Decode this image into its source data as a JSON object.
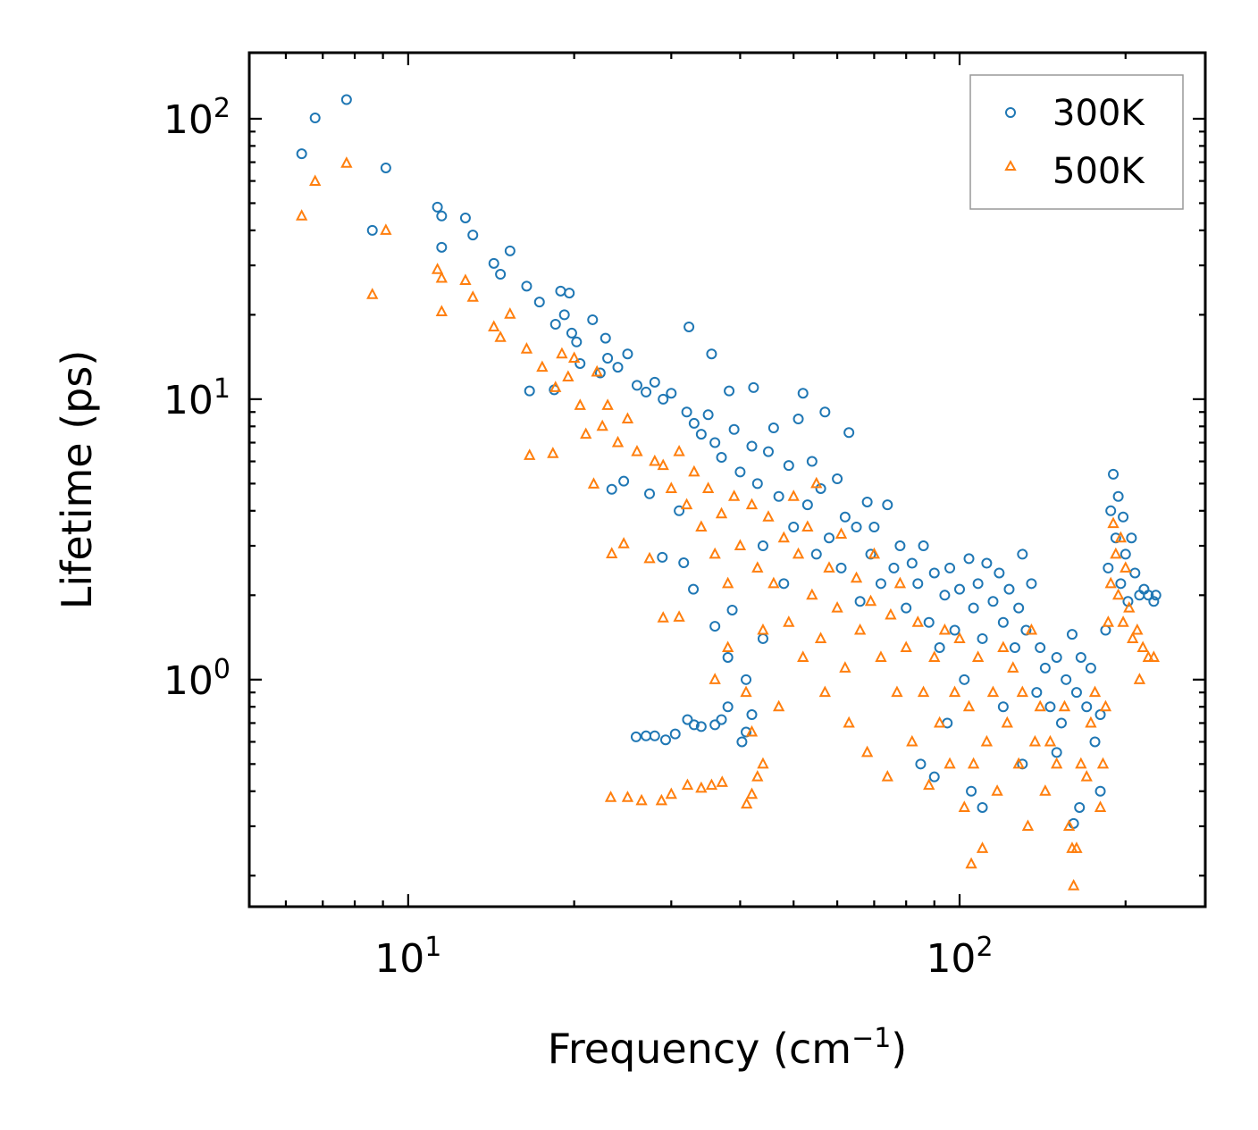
{
  "chart_data": {
    "type": "scatter",
    "title": "",
    "xlabel": "Frequency (cm",
    "xlabel_sup": "−1",
    "xlabel_end": ")",
    "ylabel": "Lifetime (ps)",
    "xscale": "log",
    "yscale": "log",
    "xlim": [
      5.15,
      279
    ],
    "ylim": [
      0.155,
      172
    ],
    "grid": false,
    "legend_position": "top-right",
    "x_ticks": [
      {
        "value": 10,
        "base": "10",
        "exp": "1"
      },
      {
        "value": 100,
        "base": "10",
        "exp": "2"
      }
    ],
    "y_ticks": [
      {
        "value": 1,
        "base": "10",
        "exp": "0"
      },
      {
        "value": 10,
        "base": "10",
        "exp": "1"
      },
      {
        "value": 100,
        "base": "10",
        "exp": "2"
      }
    ],
    "series": [
      {
        "name": "300K",
        "marker": "circle",
        "color": "#1f77b4",
        "points": [
          [
            6.41,
            75
          ],
          [
            6.78,
            100.7
          ],
          [
            7.73,
            117
          ],
          [
            8.61,
            40
          ],
          [
            9.11,
            66.8
          ],
          [
            11.3,
            48.4
          ],
          [
            11.5,
            45
          ],
          [
            11.5,
            34.8
          ],
          [
            12.7,
            44.3
          ],
          [
            13.1,
            38.5
          ],
          [
            14.3,
            30.5
          ],
          [
            14.7,
            27.9
          ],
          [
            15.3,
            33.8
          ],
          [
            16.4,
            25.3
          ],
          [
            16.6,
            10.7
          ],
          [
            17.3,
            22.2
          ],
          [
            18.4,
            10.8
          ],
          [
            18.9,
            24.3
          ],
          [
            19.6,
            23.9
          ],
          [
            18.5,
            18.5
          ],
          [
            19.2,
            20
          ],
          [
            19.8,
            17.2
          ],
          [
            20.5,
            13.4
          ],
          [
            20.2,
            16
          ],
          [
            21.6,
            19.2
          ],
          [
            22.3,
            12.4
          ],
          [
            22.8,
            16.5
          ],
          [
            23,
            14
          ],
          [
            23.4,
            4.77
          ],
          [
            24,
            13
          ],
          [
            24.6,
            5.1
          ],
          [
            25,
            14.5
          ],
          [
            26,
            11.2
          ],
          [
            27,
            10.6
          ],
          [
            27.4,
            4.6
          ],
          [
            28,
            11.5
          ],
          [
            28.9,
            2.73
          ],
          [
            29,
            10
          ],
          [
            30,
            10.5
          ],
          [
            31,
            4.0
          ],
          [
            31.6,
            2.61
          ],
          [
            32.3,
            18.1
          ],
          [
            32.9,
            2.1
          ],
          [
            32,
            9
          ],
          [
            33,
            8.2
          ],
          [
            34,
            7.5
          ],
          [
            35.5,
            14.5
          ],
          [
            35,
            8.8
          ],
          [
            36,
            7
          ],
          [
            36,
            1.55
          ],
          [
            37,
            6.2
          ],
          [
            38.2,
            10.7
          ],
          [
            38.7,
            1.77
          ],
          [
            38,
            1.2
          ],
          [
            39,
            7.8
          ],
          [
            40,
            5.5
          ],
          [
            41,
            1.0
          ],
          [
            42.3,
            11
          ],
          [
            42,
            6.8
          ],
          [
            43,
            5
          ],
          [
            44,
            1.4
          ],
          [
            44,
            3
          ],
          [
            45,
            6.5
          ],
          [
            46,
            7.9
          ],
          [
            47,
            4.5
          ],
          [
            48,
            2.2
          ],
          [
            49,
            5.8
          ],
          [
            50,
            3.5
          ],
          [
            51,
            8.5
          ],
          [
            52,
            10.5
          ],
          [
            53,
            4.2
          ],
          [
            54,
            6
          ],
          [
            55,
            2.8
          ],
          [
            56,
            4.8
          ],
          [
            57,
            9
          ],
          [
            58,
            3.2
          ],
          [
            60,
            5.2
          ],
          [
            61,
            2.5
          ],
          [
            62,
            3.8
          ],
          [
            63,
            7.6
          ],
          [
            65,
            3.5
          ],
          [
            66,
            1.9
          ],
          [
            68,
            4.3
          ],
          [
            69,
            2.8
          ],
          [
            70,
            3.5
          ],
          [
            72,
            2.2
          ],
          [
            74,
            4.2
          ],
          [
            76,
            2.5
          ],
          [
            78,
            3.0
          ],
          [
            80,
            1.8
          ],
          [
            82,
            2.6
          ],
          [
            84,
            2.2
          ],
          [
            86,
            3.0
          ],
          [
            88,
            1.6
          ],
          [
            90,
            2.4
          ],
          [
            92,
            1.3
          ],
          [
            94,
            2.0
          ],
          [
            96,
            2.5
          ],
          [
            98,
            1.5
          ],
          [
            100,
            2.1
          ],
          [
            102,
            1.0
          ],
          [
            104,
            2.7
          ],
          [
            106,
            1.8
          ],
          [
            108,
            2.2
          ],
          [
            110,
            1.4
          ],
          [
            112,
            2.6
          ],
          [
            115,
            1.9
          ],
          [
            118,
            2.4
          ],
          [
            120,
            1.6
          ],
          [
            123,
            2.1
          ],
          [
            126,
            1.3
          ],
          [
            128,
            1.8
          ],
          [
            130,
            2.8
          ],
          [
            132,
            1.5
          ],
          [
            135,
            2.2
          ],
          [
            138,
            0.9
          ],
          [
            140,
            1.3
          ],
          [
            143,
            1.1
          ],
          [
            146,
            0.8
          ],
          [
            150,
            1.2
          ],
          [
            153,
            0.7
          ],
          [
            156,
            1.0
          ],
          [
            160,
            1.45
          ],
          [
            161,
            0.307
          ],
          [
            163,
            0.9
          ],
          [
            166,
            1.2
          ],
          [
            170,
            0.8
          ],
          [
            173,
            1.1
          ],
          [
            176,
            0.6
          ],
          [
            180,
            0.75
          ],
          [
            184,
            1.5
          ],
          [
            186,
            2.5
          ],
          [
            188,
            4.0
          ],
          [
            190,
            5.4
          ],
          [
            192,
            3.2
          ],
          [
            194,
            4.5
          ],
          [
            196,
            2.2
          ],
          [
            198,
            3.8
          ],
          [
            200,
            2.8
          ],
          [
            202,
            1.9
          ],
          [
            205,
            3.2
          ],
          [
            208,
            2.4
          ],
          [
            212,
            2.0
          ],
          [
            216,
            2.1
          ],
          [
            220,
            2.0
          ],
          [
            225,
            1.9
          ],
          [
            227,
            2.0
          ],
          [
            25.9,
            0.625
          ],
          [
            27,
            0.63
          ],
          [
            28,
            0.63
          ],
          [
            29.3,
            0.61
          ],
          [
            30.5,
            0.64
          ],
          [
            32.1,
            0.72
          ],
          [
            33,
            0.69
          ],
          [
            34,
            0.68
          ],
          [
            36,
            0.69
          ],
          [
            37,
            0.72
          ],
          [
            38,
            0.8
          ],
          [
            40.3,
            0.6
          ],
          [
            41,
            0.65
          ],
          [
            42,
            0.75
          ],
          [
            85,
            0.5
          ],
          [
            90,
            0.45
          ],
          [
            95,
            0.7
          ],
          [
            105,
            0.4
          ],
          [
            110,
            0.35
          ],
          [
            120,
            0.8
          ],
          [
            130,
            0.5
          ],
          [
            150,
            0.55
          ],
          [
            165,
            0.35
          ],
          [
            180,
            0.4
          ]
        ]
      },
      {
        "name": "500K",
        "marker": "triangle",
        "color": "#ff7f0e",
        "points": [
          [
            6.41,
            45
          ],
          [
            6.78,
            59.8
          ],
          [
            7.73,
            69.4
          ],
          [
            8.61,
            23.6
          ],
          [
            9.11,
            40
          ],
          [
            11.3,
            29
          ],
          [
            11.5,
            27
          ],
          [
            11.5,
            20.5
          ],
          [
            12.7,
            26.5
          ],
          [
            13.1,
            23.1
          ],
          [
            14.3,
            18.1
          ],
          [
            14.7,
            16.6
          ],
          [
            15.3,
            20.1
          ],
          [
            16.4,
            15.1
          ],
          [
            16.6,
            6.3
          ],
          [
            17.5,
            13
          ],
          [
            18.3,
            6.4
          ],
          [
            18.5,
            11
          ],
          [
            19,
            14.5
          ],
          [
            19.5,
            12
          ],
          [
            20,
            14
          ],
          [
            20.5,
            9.5
          ],
          [
            21,
            7.5
          ],
          [
            21.7,
            4.98
          ],
          [
            22,
            12.5
          ],
          [
            22.5,
            8
          ],
          [
            23,
            9.5
          ],
          [
            23.4,
            2.81
          ],
          [
            24,
            7
          ],
          [
            24.6,
            3.05
          ],
          [
            25,
            8.5
          ],
          [
            26,
            6.5
          ],
          [
            27.4,
            2.7
          ],
          [
            28,
            6
          ],
          [
            29,
            1.66
          ],
          [
            29,
            5.8
          ],
          [
            30,
            4.8
          ],
          [
            31,
            1.67
          ],
          [
            31,
            6.5
          ],
          [
            32,
            4.2
          ],
          [
            33,
            5.5
          ],
          [
            34,
            3.5
          ],
          [
            35,
            4.8
          ],
          [
            36,
            2.8
          ],
          [
            36,
            1.0
          ],
          [
            37,
            3.9
          ],
          [
            38,
            1.3
          ],
          [
            38,
            2.2
          ],
          [
            39,
            4.5
          ],
          [
            40,
            3
          ],
          [
            41,
            0.9
          ],
          [
            42,
            4.2
          ],
          [
            42,
            0.65
          ],
          [
            43,
            2.5
          ],
          [
            44,
            1.5
          ],
          [
            45,
            3.8
          ],
          [
            46,
            2.2
          ],
          [
            47,
            0.8
          ],
          [
            48,
            3.2
          ],
          [
            49,
            1.6
          ],
          [
            50,
            4.5
          ],
          [
            51,
            2.8
          ],
          [
            52,
            1.2
          ],
          [
            53,
            3.5
          ],
          [
            54,
            2
          ],
          [
            55,
            5
          ],
          [
            56,
            1.4
          ],
          [
            57,
            0.9
          ],
          [
            58,
            2.5
          ],
          [
            60,
            1.8
          ],
          [
            61,
            3.3
          ],
          [
            62,
            1.1
          ],
          [
            63,
            0.7
          ],
          [
            65,
            2.3
          ],
          [
            66,
            1.5
          ],
          [
            68,
            0.55
          ],
          [
            69,
            1.9
          ],
          [
            70,
            2.8
          ],
          [
            72,
            1.2
          ],
          [
            74,
            0.45
          ],
          [
            75,
            1.7
          ],
          [
            77,
            0.9
          ],
          [
            78,
            2.2
          ],
          [
            80,
            1.3
          ],
          [
            82,
            0.6
          ],
          [
            84,
            1.6
          ],
          [
            86,
            0.9
          ],
          [
            88,
            0.42
          ],
          [
            90,
            1.2
          ],
          [
            92,
            0.7
          ],
          [
            94,
            1.5
          ],
          [
            96,
            0.5
          ],
          [
            98,
            0.9
          ],
          [
            100,
            1.4
          ],
          [
            102,
            0.35
          ],
          [
            104,
            0.8
          ],
          [
            105,
            0.22
          ],
          [
            106,
            0.5
          ],
          [
            108,
            1.2
          ],
          [
            110,
            0.25
          ],
          [
            112,
            0.6
          ],
          [
            115,
            0.9
          ],
          [
            117,
            0.4
          ],
          [
            120,
            1.3
          ],
          [
            122,
            0.7
          ],
          [
            125,
            1.1
          ],
          [
            128,
            0.5
          ],
          [
            130,
            0.9
          ],
          [
            133,
            0.3
          ],
          [
            135,
            1.5
          ],
          [
            137,
            0.6
          ],
          [
            140,
            0.8
          ],
          [
            143,
            0.4
          ],
          [
            146,
            0.6
          ],
          [
            150,
            0.5
          ],
          [
            155,
            0.8
          ],
          [
            158,
            0.3
          ],
          [
            160,
            0.25
          ],
          [
            161,
            0.184
          ],
          [
            163,
            0.25
          ],
          [
            166,
            0.5
          ],
          [
            170,
            0.45
          ],
          [
            173,
            0.7
          ],
          [
            176,
            0.9
          ],
          [
            180,
            0.35
          ],
          [
            182,
            0.5
          ],
          [
            184,
            0.8
          ],
          [
            186,
            1.6
          ],
          [
            188,
            2.2
          ],
          [
            190,
            3.6
          ],
          [
            192,
            2.8
          ],
          [
            194,
            2.0
          ],
          [
            196,
            3.2
          ],
          [
            198,
            1.6
          ],
          [
            200,
            2.5
          ],
          [
            203,
            1.8
          ],
          [
            206,
            1.4
          ],
          [
            210,
            1.5
          ],
          [
            212,
            1.0
          ],
          [
            215,
            1.3
          ],
          [
            220,
            1.2
          ],
          [
            225,
            1.2
          ],
          [
            23.3,
            0.38
          ],
          [
            25,
            0.38
          ],
          [
            26.5,
            0.37
          ],
          [
            28.8,
            0.37
          ],
          [
            30,
            0.39
          ],
          [
            32.1,
            0.42
          ],
          [
            34,
            0.41
          ],
          [
            35.5,
            0.42
          ],
          [
            37.1,
            0.43
          ],
          [
            41.1,
            0.36
          ],
          [
            42,
            0.39
          ],
          [
            43,
            0.45
          ],
          [
            44,
            0.5
          ]
        ]
      }
    ]
  }
}
